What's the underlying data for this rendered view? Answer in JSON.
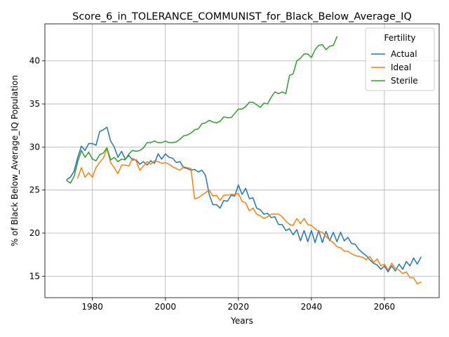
{
  "chart_data": {
    "type": "line",
    "title": "Score_6_in_TOLERANCE_COMMUNIST_for_Black_Below_Average_IQ",
    "xlabel": "Years",
    "ylabel": "% of Black Below_Average_IQ Population",
    "xlim": [
      1967,
      2075
    ],
    "ylim": [
      12.5,
      44.3
    ],
    "xticks": [
      1980,
      2000,
      2020,
      2040,
      2060
    ],
    "yticks": [
      15,
      20,
      25,
      30,
      35,
      40
    ],
    "grid": true,
    "legend": {
      "title": "Fertility",
      "placement": "top-right"
    },
    "series": [
      {
        "name": "Actual",
        "color": "#1f77b4",
        "x": [
          1973,
          1974,
          1975,
          1976,
          1977,
          1978,
          1979,
          1980,
          1981,
          1982,
          1983,
          1984,
          1985,
          1986,
          1987,
          1988,
          1989,
          1990,
          1991,
          1992,
          1993,
          1994,
          1995,
          1996,
          1997,
          1998,
          1999,
          2000,
          2001,
          2002,
          2003,
          2004,
          2005,
          2006,
          2007,
          2008,
          2009,
          2010,
          2011,
          2012,
          2013,
          2014,
          2015,
          2016,
          2017,
          2018,
          2019,
          2020,
          2021,
          2022,
          2023,
          2024,
          2025,
          2026,
          2027,
          2028,
          2029,
          2030,
          2031,
          2032,
          2033,
          2034,
          2035,
          2036,
          2037,
          2038,
          2039,
          2040,
          2041,
          2042,
          2043,
          2044,
          2045,
          2046,
          2047,
          2048,
          2049,
          2050,
          2051,
          2052,
          2053,
          2054,
          2055,
          2056,
          2057,
          2058,
          2059,
          2060,
          2061,
          2062,
          2063,
          2064,
          2065,
          2066,
          2067,
          2068,
          2069,
          2070
        ],
        "y": [
          26.2,
          26.5,
          27.2,
          28.8,
          30.1,
          29.6,
          30.4,
          30.4,
          30.2,
          31.8,
          32.0,
          32.3,
          30.7,
          30.0,
          28.8,
          29.5,
          28.6,
          29.0,
          28.5,
          28.5,
          28.0,
          28.3,
          27.9,
          28.4,
          28.1,
          29.2,
          28.6,
          29.2,
          28.8,
          28.7,
          28.2,
          28.3,
          27.6,
          27.5,
          27.3,
          27.4,
          27.1,
          27.3,
          26.7,
          24.5,
          23.3,
          23.3,
          22.9,
          23.8,
          23.7,
          24.4,
          24.3,
          25.6,
          24.5,
          25.2,
          24.0,
          24.1,
          22.9,
          22.7,
          22.2,
          22.3,
          21.8,
          21.9,
          21.0,
          21.0,
          20.3,
          20.5,
          19.8,
          20.4,
          19.1,
          20.3,
          19.0,
          20.3,
          18.9,
          20.3,
          18.9,
          20.2,
          19.1,
          20.1,
          19.0,
          20.1,
          19.1,
          19.5,
          18.8,
          18.7,
          18.1,
          17.7,
          17.4,
          16.9,
          16.5,
          16.3,
          15.8,
          16.2,
          15.5,
          16.2,
          15.6,
          16.4,
          15.8,
          16.7,
          16.2,
          17.1,
          16.4,
          17.2
        ]
      },
      {
        "name": "Ideal",
        "color": "#ff7f0e",
        "x": [
          1976,
          1977,
          1978,
          1979,
          1980,
          1981,
          1982,
          1983,
          1984,
          1985,
          1986,
          1987,
          1988,
          1989,
          1990,
          1991,
          1992,
          1993,
          1994,
          1995,
          1996,
          1997,
          1998,
          1999,
          2000,
          2001,
          2002,
          2003,
          2004,
          2005,
          2006,
          2007,
          2008,
          2009,
          2010,
          2011,
          2012,
          2013,
          2014,
          2015,
          2016,
          2017,
          2018,
          2019,
          2020,
          2021,
          2022,
          2023,
          2024,
          2025,
          2026,
          2027,
          2028,
          2029,
          2030,
          2031,
          2032,
          2033,
          2034,
          2035,
          2036,
          2037,
          2038,
          2039,
          2040,
          2041,
          2042,
          2043,
          2044,
          2045,
          2046,
          2047,
          2048,
          2049,
          2050,
          2051,
          2052,
          2053,
          2054,
          2055,
          2056,
          2057,
          2058,
          2059,
          2060,
          2061,
          2062,
          2063,
          2064,
          2065,
          2066,
          2067,
          2068,
          2069,
          2070
        ],
        "y": [
          26.4,
          27.6,
          26.5,
          27.0,
          26.5,
          27.6,
          28.2,
          28.7,
          29.8,
          28.2,
          27.6,
          26.9,
          27.9,
          27.9,
          27.8,
          28.7,
          28.4,
          27.3,
          27.8,
          28.3,
          28.0,
          28.4,
          28.3,
          28.1,
          28.2,
          28.0,
          27.7,
          27.5,
          27.3,
          27.7,
          27.6,
          27.5,
          24.0,
          24.1,
          24.4,
          24.7,
          25.0,
          24.3,
          24.4,
          23.8,
          24.4,
          24.4,
          24.5,
          24.5,
          24.6,
          23.7,
          23.5,
          22.6,
          22.9,
          22.2,
          22.0,
          21.7,
          21.9,
          22.2,
          22.2,
          22.2,
          21.9,
          21.4,
          21.0,
          20.9,
          21.7,
          21.1,
          21.7,
          21.0,
          20.9,
          20.5,
          20.2,
          20.1,
          19.6,
          19.2,
          18.9,
          18.4,
          18.3,
          17.9,
          17.9,
          17.6,
          17.4,
          17.3,
          17.2,
          16.9,
          17.3,
          16.6,
          17.0,
          16.2,
          16.4,
          15.7,
          16.5,
          15.9,
          15.7,
          15.3,
          15.5,
          14.8,
          14.8,
          14.1,
          14.3
        ]
      },
      {
        "name": "Sterile",
        "color": "#2ca02c",
        "x": [
          1973,
          1974,
          1975,
          1976,
          1977,
          1978,
          1979,
          1980,
          1981,
          1982,
          1983,
          1984,
          1985,
          1986,
          1987,
          1988,
          1989,
          1990,
          1991,
          1992,
          1993,
          1994,
          1995,
          1996,
          1997,
          1998,
          1999,
          2000,
          2001,
          2002,
          2003,
          2004,
          2005,
          2006,
          2007,
          2008,
          2009,
          2010,
          2011,
          2012,
          2013,
          2014,
          2015,
          2016,
          2017,
          2018,
          2019,
          2020,
          2021,
          2022,
          2023,
          2024,
          2025,
          2026,
          2027,
          2028,
          2029,
          2030,
          2031,
          2032,
          2033,
          2034,
          2035,
          2036,
          2037,
          2038,
          2039,
          2040,
          2041,
          2042,
          2043,
          2044,
          2045,
          2046,
          2047
        ],
        "y": [
          26.1,
          25.8,
          26.6,
          28.3,
          29.6,
          28.8,
          29.4,
          28.6,
          28.4,
          29.1,
          29.3,
          29.9,
          28.5,
          28.8,
          28.3,
          28.6,
          28.5,
          29.2,
          29.6,
          29.5,
          29.6,
          29.9,
          30.5,
          30.5,
          30.7,
          30.5,
          30.5,
          30.7,
          30.5,
          30.5,
          30.6,
          30.9,
          31.3,
          31.4,
          31.6,
          32.0,
          32.1,
          32.7,
          32.8,
          33.1,
          32.9,
          32.8,
          33.0,
          33.5,
          33.4,
          33.4,
          33.9,
          34.4,
          34.4,
          34.7,
          35.2,
          35.2,
          34.9,
          34.6,
          35.1,
          35.0,
          35.8,
          36.4,
          36.2,
          36.4,
          36.2,
          38.3,
          38.5,
          40.0,
          40.3,
          40.8,
          40.8,
          40.4,
          41.3,
          41.8,
          41.9,
          41.3,
          41.7,
          41.8,
          42.8
        ]
      }
    ]
  }
}
